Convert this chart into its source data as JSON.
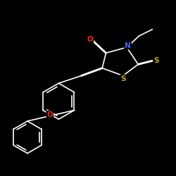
{
  "background_color": "#000000",
  "bond_color": "#ffffff",
  "atom_colors": {
    "O": "#ff2200",
    "N": "#4466ff",
    "S_thione": "#ccaa00",
    "S_ring": "#ccaa00"
  },
  "lw": 1.2,
  "dbo": 0.025
}
